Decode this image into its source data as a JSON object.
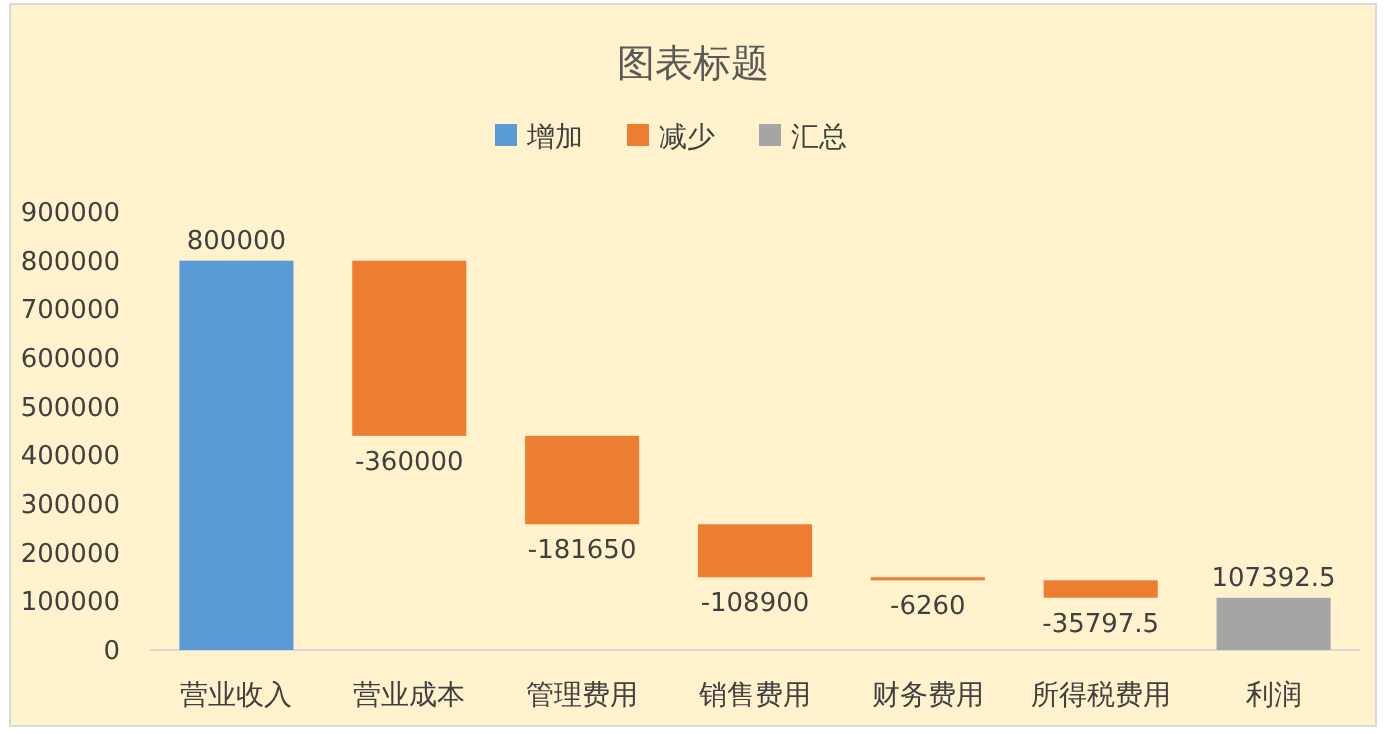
{
  "chart_data": {
    "type": "bar",
    "title": "图表标题",
    "categories": [
      "营业收入",
      "营业成本",
      "管理费用",
      "销售费用",
      "财务费用",
      "所得税费用",
      "利润"
    ],
    "series": [
      {
        "name": "增加",
        "color": "#5b9bd5",
        "values": [
          800000,
          null,
          null,
          null,
          null,
          null,
          null
        ],
        "base": [
          0,
          null,
          null,
          null,
          null,
          null,
          null
        ]
      },
      {
        "name": "减少",
        "color": "#ed7d31",
        "values": [
          null,
          -360000,
          -181650,
          -108900,
          -6260,
          -35797.5,
          null
        ],
        "base": [
          null,
          800000,
          440000,
          258350,
          149450,
          143190,
          null
        ]
      },
      {
        "name": "汇总",
        "color": "#a5a5a5",
        "values": [
          null,
          null,
          null,
          null,
          null,
          null,
          107392.5
        ],
        "base": [
          null,
          null,
          null,
          null,
          null,
          null,
          0
        ]
      }
    ],
    "ylim": [
      0,
      900000
    ],
    "yticks": [
      0,
      100000,
      200000,
      300000,
      400000,
      500000,
      600000,
      700000,
      800000,
      900000
    ],
    "legend": "top",
    "data_labels": true
  }
}
